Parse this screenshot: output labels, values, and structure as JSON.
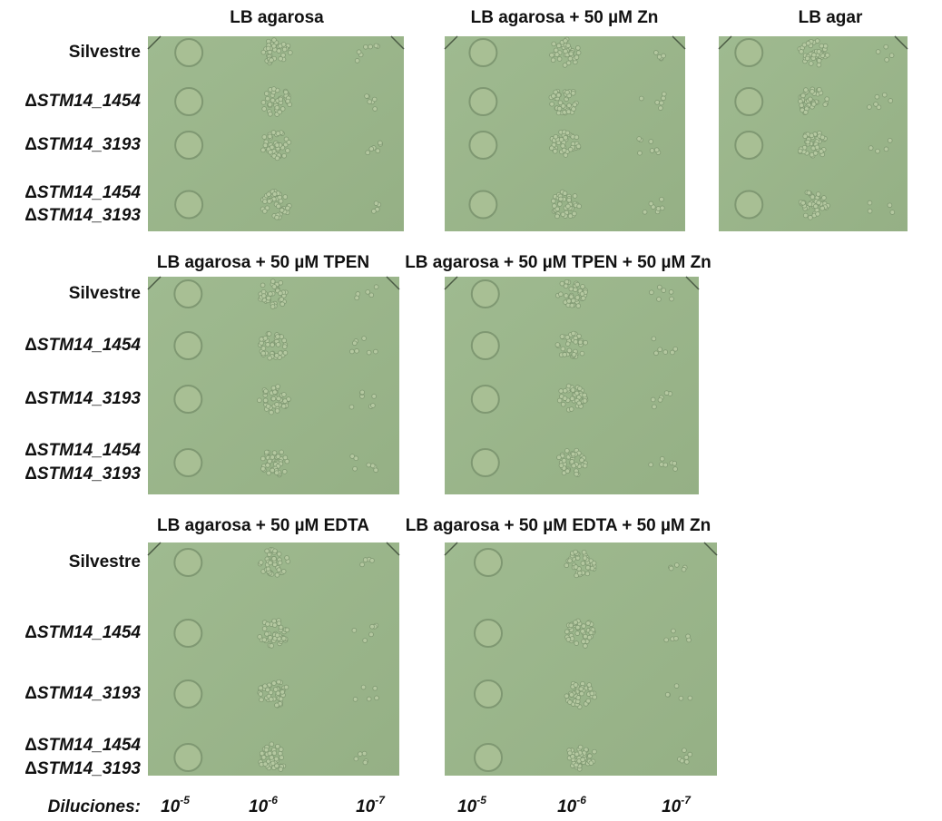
{
  "rows": [
    {
      "panels": [
        {
          "title": "LB agarosa"
        },
        {
          "title": "LB agarosa + 50 µM Zn"
        },
        {
          "title": "LB agar"
        }
      ]
    },
    {
      "panels": [
        {
          "title": "LB agarosa + 50 µM TPEN"
        },
        {
          "title": "LB agarosa + 50 µM TPEN + 50 µM Zn"
        }
      ]
    },
    {
      "panels": [
        {
          "title": "LB agarosa + 50 µM EDTA"
        },
        {
          "title": "LB agarosa + 50 µM EDTA + 50 µM Zn"
        }
      ]
    }
  ],
  "strains": [
    [
      {
        "text": "Silvestre"
      }
    ],
    [
      {
        "prefix": "Δ",
        "text": "STM14_1454"
      }
    ],
    [
      {
        "prefix": "Δ",
        "text": "STM14_3193"
      }
    ],
    [
      {
        "prefix": "Δ",
        "text": "STM14_1454"
      },
      {
        "prefix": "Δ",
        "text": "STM14_3193"
      }
    ]
  ],
  "dilutions": {
    "label": "Diluciones:",
    "base": "10",
    "exponents": [
      "-5",
      "-6",
      "-7"
    ]
  }
}
